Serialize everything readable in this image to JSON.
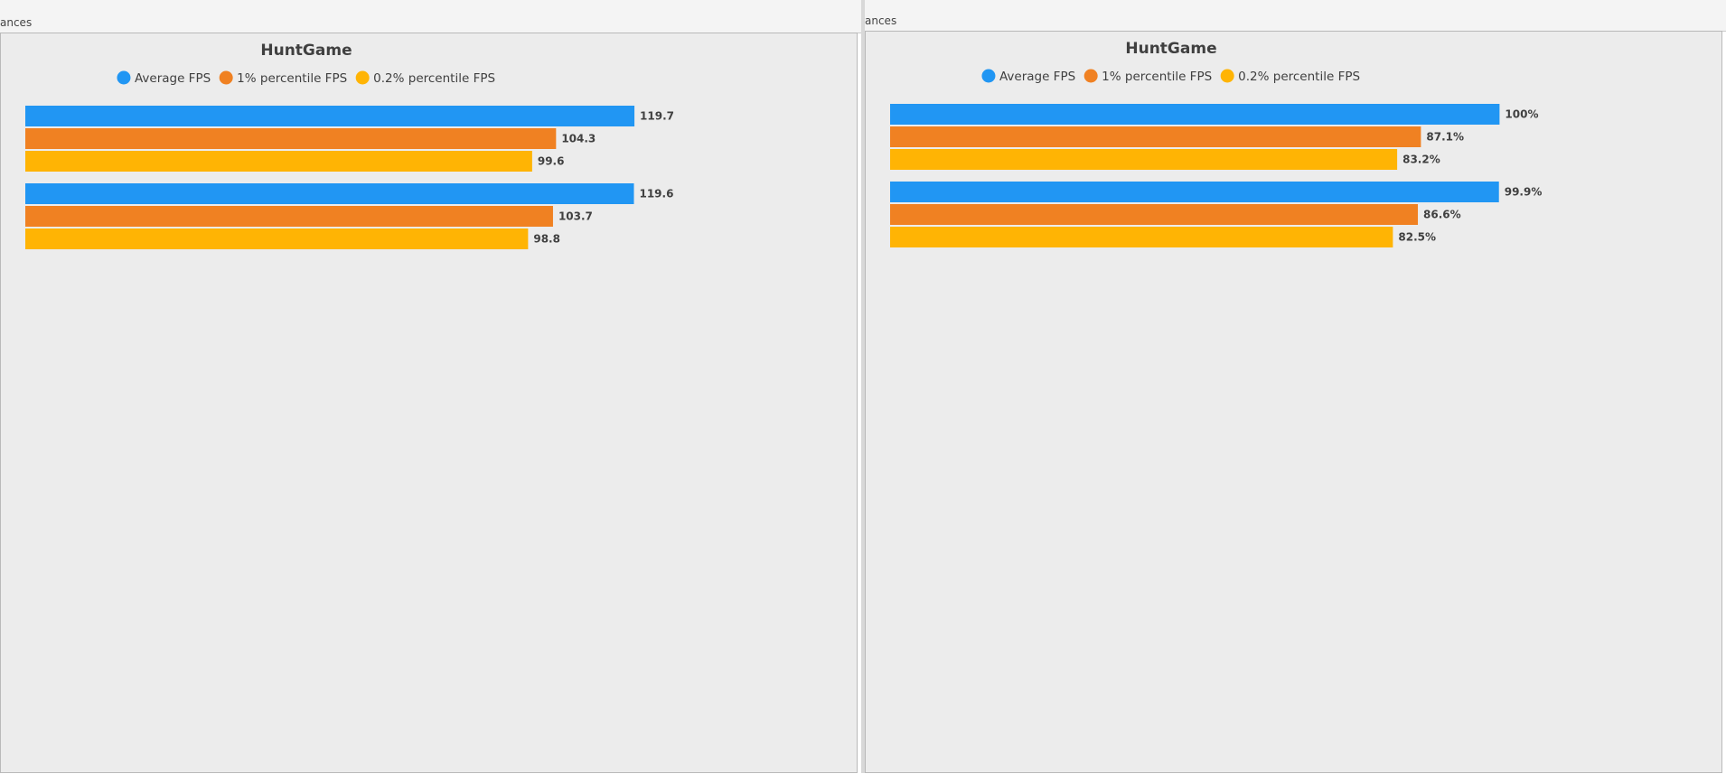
{
  "panels": [
    {
      "tab_label": "ances",
      "chart_data": {
        "type": "bar",
        "orientation": "horizontal",
        "title": "HuntGame",
        "legend_position": "top-center",
        "grid": false,
        "xlim": [
          0,
          160
        ],
        "categories": [
          "",
          ""
        ],
        "series": [
          {
            "name": "Average FPS",
            "color": "#2196f3",
            "values": [
              119.7,
              119.6
            ],
            "labels": [
              "119.7",
              "119.6"
            ]
          },
          {
            "name": "1% percentile FPS",
            "color": "#f08122",
            "values": [
              104.3,
              103.7
            ],
            "labels": [
              "104.3",
              "103.7"
            ]
          },
          {
            "name": "0.2% percentile FPS",
            "color": "#ffb404",
            "values": [
              99.6,
              98.8
            ],
            "labels": [
              "99.6",
              "98.8"
            ]
          }
        ]
      }
    },
    {
      "tab_label": "ances",
      "chart_data": {
        "type": "bar",
        "orientation": "horizontal",
        "title": "HuntGame",
        "legend_position": "top-center",
        "grid": false,
        "xlim": [
          0,
          133.6
        ],
        "categories": [
          "",
          ""
        ],
        "series": [
          {
            "name": "Average FPS",
            "color": "#2196f3",
            "values": [
              100,
              99.9
            ],
            "labels": [
              "100%",
              "99.9%"
            ]
          },
          {
            "name": "1% percentile FPS",
            "color": "#f08122",
            "values": [
              87.1,
              86.6
            ],
            "labels": [
              "87.1%",
              "86.6%"
            ]
          },
          {
            "name": "0.2% percentile FPS",
            "color": "#ffb404",
            "values": [
              83.2,
              82.5
            ],
            "labels": [
              "83.2%",
              "82.5%"
            ]
          }
        ]
      }
    }
  ]
}
